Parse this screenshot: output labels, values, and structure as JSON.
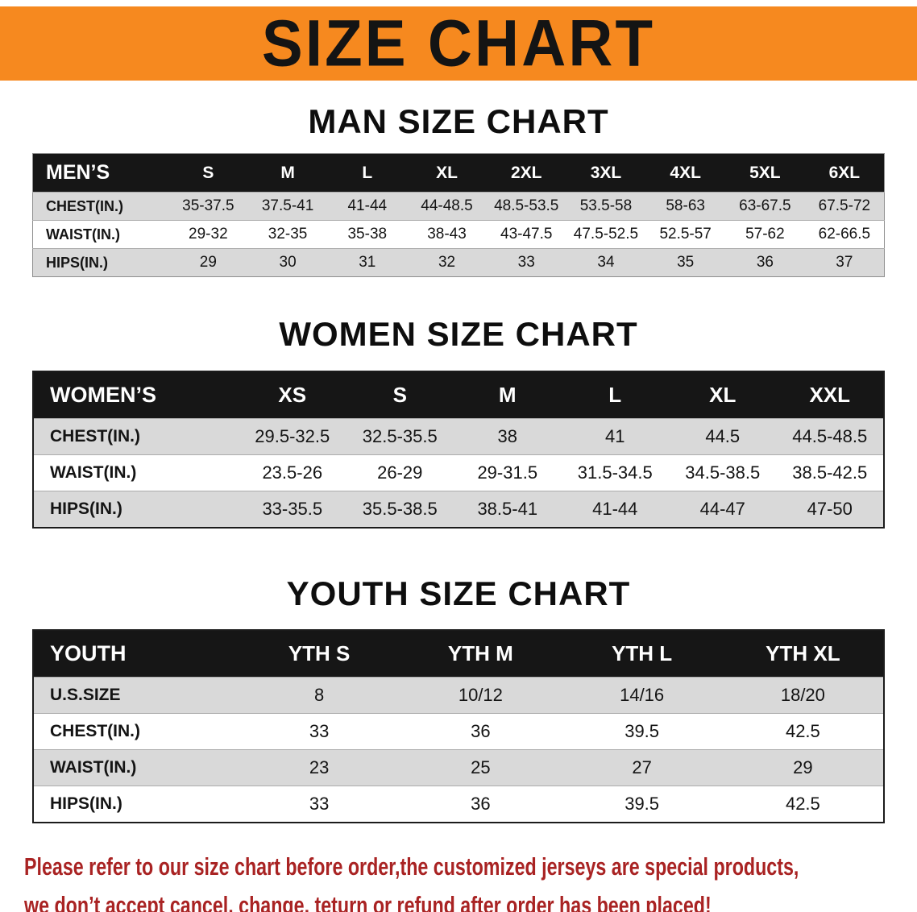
{
  "banner": {
    "title": "SIZE CHART",
    "bg_color": "#f6891f",
    "text_color": "#141414"
  },
  "colors": {
    "table_header_bg": "#161616",
    "table_header_text": "#ffffff",
    "row_stripe_gray": "#d9d9d9",
    "notice_red": "#a92323"
  },
  "sections": [
    {
      "heading": "MAN SIZE CHART",
      "table": {
        "header": [
          "MEN’S",
          "S",
          "M",
          "L",
          "XL",
          "2XL",
          "3XL",
          "4XL",
          "5XL",
          "6XL"
        ],
        "rows": [
          [
            "CHEST(IN.)",
            "35-37.5",
            "37.5-41",
            "41-44",
            "44-48.5",
            "48.5-53.5",
            "53.5-58",
            "58-63",
            "63-67.5",
            "67.5-72"
          ],
          [
            "WAIST(IN.)",
            "29-32",
            "32-35",
            "35-38",
            "38-43",
            "43-47.5",
            "47.5-52.5",
            "52.5-57",
            "57-62",
            "62-66.5"
          ],
          [
            "HIPS(IN.)",
            "29",
            "30",
            "31",
            "32",
            "33",
            "34",
            "35",
            "36",
            "37"
          ]
        ]
      }
    },
    {
      "heading": "WOMEN SIZE CHART",
      "table": {
        "header": [
          "WOMEN’S",
          "XS",
          "S",
          "M",
          "L",
          "XL",
          "XXL"
        ],
        "rows": [
          [
            "CHEST(IN.)",
            "29.5-32.5",
            "32.5-35.5",
            "38",
            "41",
            "44.5",
            "44.5-48.5"
          ],
          [
            "WAIST(IN.)",
            "23.5-26",
            "26-29",
            "29-31.5",
            "31.5-34.5",
            "34.5-38.5",
            "38.5-42.5"
          ],
          [
            "HIPS(IN.)",
            "33-35.5",
            "35.5-38.5",
            "38.5-41",
            "41-44",
            "44-47",
            "47-50"
          ]
        ]
      }
    },
    {
      "heading": "YOUTH SIZE CHART",
      "table": {
        "header": [
          "YOUTH",
          "YTH S",
          "YTH M",
          "YTH L",
          "YTH XL"
        ],
        "rows": [
          [
            "U.S.SIZE",
            "8",
            "10/12",
            "14/16",
            "18/20"
          ],
          [
            "CHEST(IN.)",
            "33",
            "36",
            "39.5",
            "42.5"
          ],
          [
            "WAIST(IN.)",
            "23",
            "25",
            "27",
            "29"
          ],
          [
            "HIPS(IN.)",
            "33",
            "36",
            "39.5",
            "42.5"
          ]
        ]
      }
    }
  ],
  "footer": {
    "lines": [
      "Please refer to our size chart before order,the customized jerseys are special products,",
      "we don’t accept cancel, change, teturn or refund after order has been placed!"
    ]
  }
}
